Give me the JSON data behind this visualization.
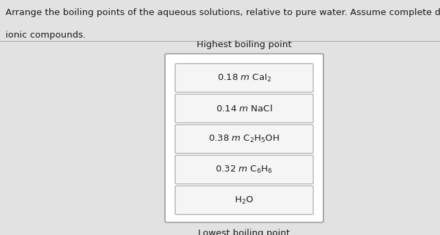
{
  "header_text_line1": "Arrange the boiling points of the aqueous solutions, relative to pure water. Assume complete dissociation for the",
  "header_text_line2": "ionic compounds.",
  "top_label": "Highest boiling point",
  "bottom_label": "Lowest boiling point",
  "items": [
    "0.18 $m$ CaI$_2$",
    "0.14 $m$ NaCl",
    "0.38 $m$ C$_2$H$_5$OH",
    "0.32 $m$ C$_6$H$_6$",
    "H$_2$O"
  ],
  "header_bg": "#e2e2e2",
  "main_bg": "#c8c8c8",
  "outer_box_bg": "#ffffff",
  "outer_box_edge": "#999999",
  "inner_box_bg": "#f5f5f5",
  "inner_box_edge": "#aaaaaa",
  "text_color": "#1a1a1a",
  "separator_color": "#aaaaaa",
  "header_font_size": 9.5,
  "label_font_size": 9.5,
  "item_font_size": 9.5
}
